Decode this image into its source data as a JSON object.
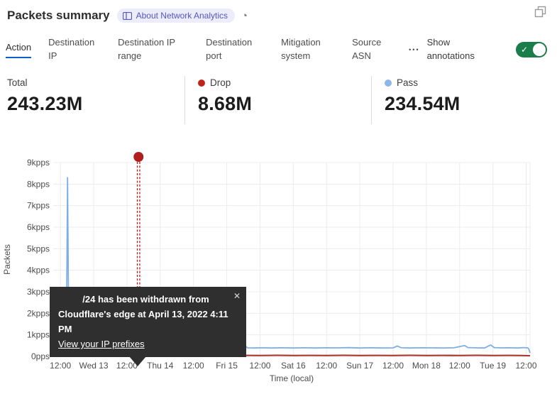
{
  "header": {
    "title": "Packets summary",
    "badge_label": "About Network Analytics"
  },
  "icons": {
    "clock": "◔",
    "check": "✓",
    "close": "✕",
    "overflow": "•••"
  },
  "tabs": [
    {
      "label": "Action",
      "active": true
    },
    {
      "label": "Destination IP",
      "active": false
    },
    {
      "label": "Destination IP range",
      "active": false
    },
    {
      "label": "Destination port",
      "active": false
    },
    {
      "label": "Mitigation system",
      "active": false
    },
    {
      "label": "Source ASN",
      "active": false
    }
  ],
  "show_annotations": {
    "label": "Show annotations",
    "enabled": true
  },
  "stats": [
    {
      "label": "Total",
      "value": "243.23M",
      "dot_color": null
    },
    {
      "label": "Drop",
      "value": "8.68M",
      "dot_color": "#c0251c"
    },
    {
      "label": "Pass",
      "value": "234.54M",
      "dot_color": "#8cb6ea"
    }
  ],
  "tooltip": {
    "line1": "/24 has been withdrawn from",
    "line2": "Cloudflare's edge at April 13, 2022 4:11 PM",
    "link": "View your IP prefixes"
  },
  "colors": {
    "accent_blue": "#0b5fcb",
    "toggle_green": "#1b7d49",
    "badge_purple": "#5357c0",
    "pass_line": "#7daee8",
    "drop_line": "#a8241c",
    "annotation_red": "#b01f1d"
  },
  "chart_data": {
    "type": "line",
    "title": "Packets summary",
    "ylabel": "Packets",
    "xlabel": "Time (local)",
    "unit": "pps",
    "ylim": [
      0,
      9000
    ],
    "y_ticks": [
      "0pps",
      "1kpps",
      "2kpps",
      "3kpps",
      "4kpps",
      "5kpps",
      "6kpps",
      "7kpps",
      "8kpps",
      "9kpps"
    ],
    "x_range_hours": [
      -2.6,
      169.4
    ],
    "x_tick_hours": [
      0,
      12,
      24,
      36,
      48,
      60,
      72,
      84,
      96,
      108,
      120,
      132,
      144,
      156,
      168
    ],
    "x_tick_labels": [
      "12:00",
      "Wed 13",
      "12:00",
      "Thu 14",
      "12:00",
      "Fri 15",
      "12:00",
      "Sat 16",
      "12:00",
      "Sun 17",
      "12:00",
      "Mon 18",
      "12:00",
      "Tue 19",
      "12:00"
    ],
    "grid": true,
    "legend_position": "top-stats",
    "series": [
      {
        "name": "Pass",
        "color": "#7daee8",
        "points": [
          [
            -2.6,
            380
          ],
          [
            -1,
            360
          ],
          [
            0,
            380
          ],
          [
            1,
            370
          ],
          [
            1.8,
            430
          ],
          [
            2.2,
            1700
          ],
          [
            2.56,
            8300
          ],
          [
            2.9,
            2600
          ],
          [
            3.2,
            950
          ],
          [
            3.8,
            620
          ],
          [
            4.5,
            470
          ],
          [
            5.5,
            420
          ],
          [
            7,
            390
          ],
          [
            9,
            410
          ],
          [
            11,
            380
          ],
          [
            13,
            400
          ],
          [
            15,
            385
          ],
          [
            17,
            405
          ],
          [
            18.4,
            700
          ],
          [
            19.2,
            470
          ],
          [
            20,
            410
          ],
          [
            22,
            395
          ],
          [
            24,
            405
          ],
          [
            25.6,
            520
          ],
          [
            26.5,
            400
          ],
          [
            28,
            390
          ],
          [
            30,
            400
          ],
          [
            32,
            385
          ],
          [
            34,
            400
          ],
          [
            36,
            390
          ],
          [
            38,
            405
          ],
          [
            40,
            390
          ],
          [
            41.4,
            420
          ],
          [
            43,
            395
          ],
          [
            44.7,
            540
          ],
          [
            45.6,
            410
          ],
          [
            48,
            390
          ],
          [
            51,
            405
          ],
          [
            54,
            390
          ],
          [
            57,
            400
          ],
          [
            60,
            390
          ],
          [
            63,
            405
          ],
          [
            66.5,
            500
          ],
          [
            67.5,
            395
          ],
          [
            70,
            390
          ],
          [
            73,
            400
          ],
          [
            76,
            390
          ],
          [
            80,
            400
          ],
          [
            84,
            390
          ],
          [
            88,
            400
          ],
          [
            92,
            390
          ],
          [
            96,
            400
          ],
          [
            100,
            395
          ],
          [
            104,
            405
          ],
          [
            108,
            390
          ],
          [
            112,
            400
          ],
          [
            116,
            390
          ],
          [
            120,
            395
          ],
          [
            121.5,
            480
          ],
          [
            123,
            400
          ],
          [
            126,
            390
          ],
          [
            130,
            400
          ],
          [
            134,
            395
          ],
          [
            138,
            390
          ],
          [
            142,
            400
          ],
          [
            145.8,
            500
          ],
          [
            147,
            410
          ],
          [
            150,
            395
          ],
          [
            153,
            390
          ],
          [
            155.2,
            530
          ],
          [
            156.5,
            410
          ],
          [
            159,
            395
          ],
          [
            162,
            400
          ],
          [
            165,
            390
          ],
          [
            167,
            410
          ],
          [
            168.6,
            395
          ],
          [
            169,
            330
          ],
          [
            169.4,
            160
          ]
        ]
      },
      {
        "name": "Drop",
        "color": "#a8241c",
        "points": [
          [
            -2.6,
            45
          ],
          [
            0,
            50
          ],
          [
            4,
            40
          ],
          [
            8,
            55
          ],
          [
            12,
            45
          ],
          [
            16,
            50
          ],
          [
            20,
            42
          ],
          [
            24,
            52
          ],
          [
            28,
            45
          ],
          [
            32,
            50
          ],
          [
            36,
            45
          ],
          [
            40,
            55
          ],
          [
            41,
            70
          ],
          [
            41.4,
            330
          ],
          [
            42,
            70
          ],
          [
            43,
            50
          ],
          [
            48,
            45
          ],
          [
            54,
            52
          ],
          [
            60,
            45
          ],
          [
            66,
            50
          ],
          [
            72,
            45
          ],
          [
            78,
            52
          ],
          [
            84,
            45
          ],
          [
            90,
            50
          ],
          [
            96,
            45
          ],
          [
            102,
            52
          ],
          [
            108,
            45
          ],
          [
            114,
            50
          ],
          [
            120,
            45
          ],
          [
            126,
            52
          ],
          [
            132,
            45
          ],
          [
            138,
            50
          ],
          [
            144,
            45
          ],
          [
            150,
            52
          ],
          [
            156,
            45
          ],
          [
            162,
            50
          ],
          [
            166,
            45
          ],
          [
            169.4,
            32
          ]
        ]
      }
    ],
    "annotation": {
      "hour": 28.18,
      "label": "/24 has been withdrawn from Cloudflare's edge at April 13, 2022 4:11 PM",
      "color": "#b01f1d"
    }
  }
}
